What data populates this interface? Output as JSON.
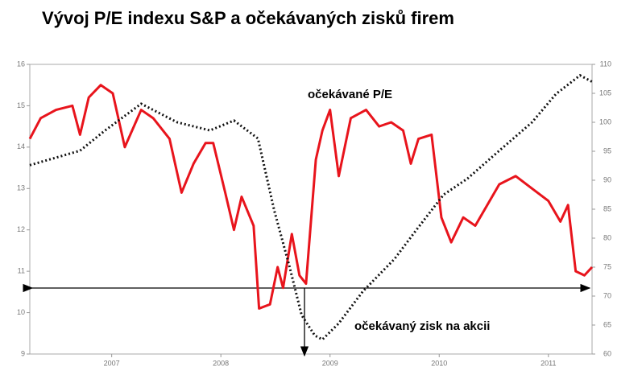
{
  "chart_data": {
    "type": "line",
    "title": "Vývoj P/E indexu S&P a očekávaných zisků firem",
    "xlim": [
      2006.75,
      2011.9
    ],
    "xticks": [
      {
        "value": 2007.5,
        "label": "2007"
      },
      {
        "value": 2008.5,
        "label": "2008"
      },
      {
        "value": 2009.5,
        "label": "2009"
      },
      {
        "value": 2010.5,
        "label": "2010"
      },
      {
        "value": 2011.5,
        "label": "2011"
      }
    ],
    "ylim": [
      9,
      16
    ],
    "yticks": [
      9,
      10,
      11,
      12,
      13,
      14,
      15,
      16
    ],
    "y2lim": [
      60,
      110
    ],
    "y2ticks": [
      60,
      65,
      70,
      75,
      80,
      85,
      90,
      95,
      100,
      105,
      110
    ],
    "series": [
      {
        "name": "očekávané P/E",
        "color": "#e8141c",
        "style": "solid",
        "x": [
          2006.75,
          2006.85,
          2006.99,
          2007.14,
          2007.21,
          2007.29,
          2007.4,
          2007.51,
          2007.62,
          2007.77,
          2007.88,
          2008.03,
          2008.14,
          2008.25,
          2008.36,
          2008.43,
          2008.54,
          2008.62,
          2008.69,
          2008.8,
          2008.85,
          2008.95,
          2009.02,
          2009.07,
          2009.15,
          2009.22,
          2009.28,
          2009.37,
          2009.43,
          2009.5,
          2009.58,
          2009.69,
          2009.83,
          2009.95,
          2010.06,
          2010.17,
          2010.24,
          2010.31,
          2010.43,
          2010.52,
          2010.61,
          2010.72,
          2010.83,
          2010.94,
          2011.05,
          2011.2,
          2011.35,
          2011.5,
          2011.61,
          2011.68,
          2011.75,
          2011.83,
          2011.9
        ],
        "values": [
          14.2,
          14.7,
          14.9,
          15.0,
          14.3,
          15.2,
          15.5,
          15.3,
          14.0,
          14.9,
          14.7,
          14.2,
          12.9,
          13.6,
          14.1,
          14.1,
          12.9,
          12.0,
          12.8,
          12.1,
          10.1,
          10.2,
          11.1,
          10.6,
          11.9,
          10.9,
          10.7,
          13.7,
          14.4,
          14.9,
          13.3,
          14.7,
          14.9,
          14.5,
          14.6,
          14.4,
          13.6,
          14.2,
          14.3,
          12.3,
          11.7,
          12.3,
          12.1,
          12.6,
          13.1,
          13.3,
          13.0,
          12.7,
          12.2,
          12.6,
          11.0,
          10.9,
          11.1
        ]
      },
      {
        "name": "očekávaný zisk na akcii",
        "color": "#111111",
        "style": "dotted",
        "axis": "y2",
        "x": [
          2006.75,
          2007.21,
          2007.44,
          2007.77,
          2008.1,
          2008.4,
          2008.62,
          2008.84,
          2008.99,
          2009.13,
          2009.24,
          2009.36,
          2009.43,
          2009.58,
          2009.8,
          2010.09,
          2010.31,
          2010.54,
          2010.76,
          2011.05,
          2011.35,
          2011.57,
          2011.79,
          2011.9
        ],
        "values": [
          92.6,
          95.1,
          98.6,
          103.2,
          100.0,
          98.6,
          100.3,
          97.2,
          84.7,
          75.0,
          66.7,
          63.2,
          62.5,
          65.3,
          70.8,
          76.4,
          81.9,
          87.5,
          90.3,
          95.1,
          100.0,
          104.9,
          108.1,
          107.0
        ]
      }
    ]
  }
}
